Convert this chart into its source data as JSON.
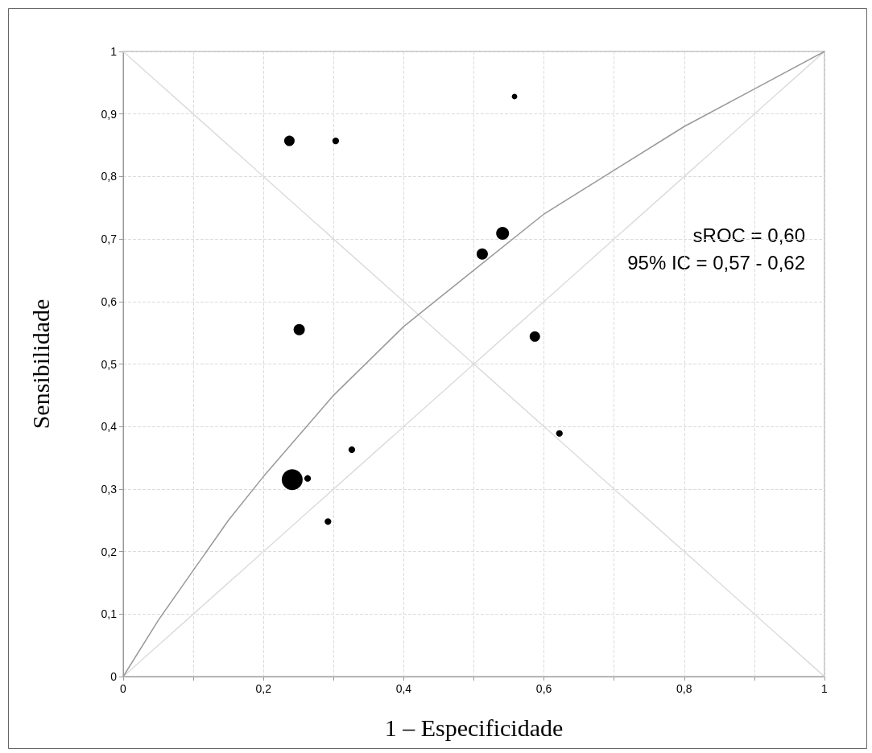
{
  "chart_data": {
    "type": "bubble",
    "xlabel": "1 – Especificidade",
    "ylabel": "Sensibilidade",
    "xlim": [
      0,
      1
    ],
    "ylim": [
      0,
      1
    ],
    "xticks": [
      {
        "value": 0,
        "label": "0"
      },
      {
        "value": 0.1,
        "label": null
      },
      {
        "value": 0.2,
        "label": "0,2"
      },
      {
        "value": 0.3,
        "label": null
      },
      {
        "value": 0.4,
        "label": "0,4"
      },
      {
        "value": 0.5,
        "label": null
      },
      {
        "value": 0.6,
        "label": "0,6"
      },
      {
        "value": 0.7,
        "label": null
      },
      {
        "value": 0.8,
        "label": "0,8"
      },
      {
        "value": 0.9,
        "label": null
      },
      {
        "value": 1,
        "label": "1"
      }
    ],
    "yticks": [
      {
        "value": 0,
        "label": "0"
      },
      {
        "value": 0.1,
        "label": "0,1"
      },
      {
        "value": 0.2,
        "label": "0,2"
      },
      {
        "value": 0.3,
        "label": "0,3"
      },
      {
        "value": 0.4,
        "label": "0,4"
      },
      {
        "value": 0.5,
        "label": "0,5"
      },
      {
        "value": 0.6,
        "label": "0,6"
      },
      {
        "value": 0.7,
        "label": "0,7"
      },
      {
        "value": 0.8,
        "label": "0,8"
      },
      {
        "value": 0.9,
        "label": "0,9"
      },
      {
        "value": 1,
        "label": "1"
      }
    ],
    "grid": true,
    "annotations": [
      "sROC = 0,60",
      "95% IC = 0,57 - 0,62"
    ],
    "series": [
      {
        "type": "line",
        "color": "#d9d9d9",
        "line_style": "dotted",
        "marker": "none",
        "x": [
          0,
          1
        ],
        "values": [
          0,
          1
        ]
      },
      {
        "type": "line",
        "color": "#d9d9d9",
        "line_style": "dotted",
        "marker": "none",
        "x": [
          0,
          1
        ],
        "values": [
          1,
          0
        ]
      },
      {
        "type": "line",
        "color": "#999999",
        "line_style": "solid",
        "marker": "none",
        "x": [
          0,
          0.05,
          0.1,
          0.15,
          0.2,
          0.3,
          0.4,
          0.5,
          0.6,
          0.7,
          0.8,
          0.9,
          1
        ],
        "values": [
          0,
          0.09,
          0.17,
          0.25,
          0.32,
          0.45,
          0.56,
          0.65,
          0.74,
          0.81,
          0.88,
          0.94,
          1
        ]
      },
      {
        "color": "#000000",
        "marker": "circle",
        "x": [
          0.237,
          0.303,
          0.558,
          0.541,
          0.512,
          0.251,
          0.587,
          0.622,
          0.326,
          0.241,
          0.263,
          0.292
        ],
        "values": [
          0.857,
          0.857,
          0.928,
          0.709,
          0.676,
          0.555,
          0.544,
          0.389,
          0.363,
          0.315,
          0.317,
          0.248
        ],
        "sizes": [
          0.25,
          0.1,
          0.07,
          0.38,
          0.29,
          0.29,
          0.25,
          0.1,
          0.1,
          1,
          0.1,
          0.1
        ]
      }
    ]
  }
}
